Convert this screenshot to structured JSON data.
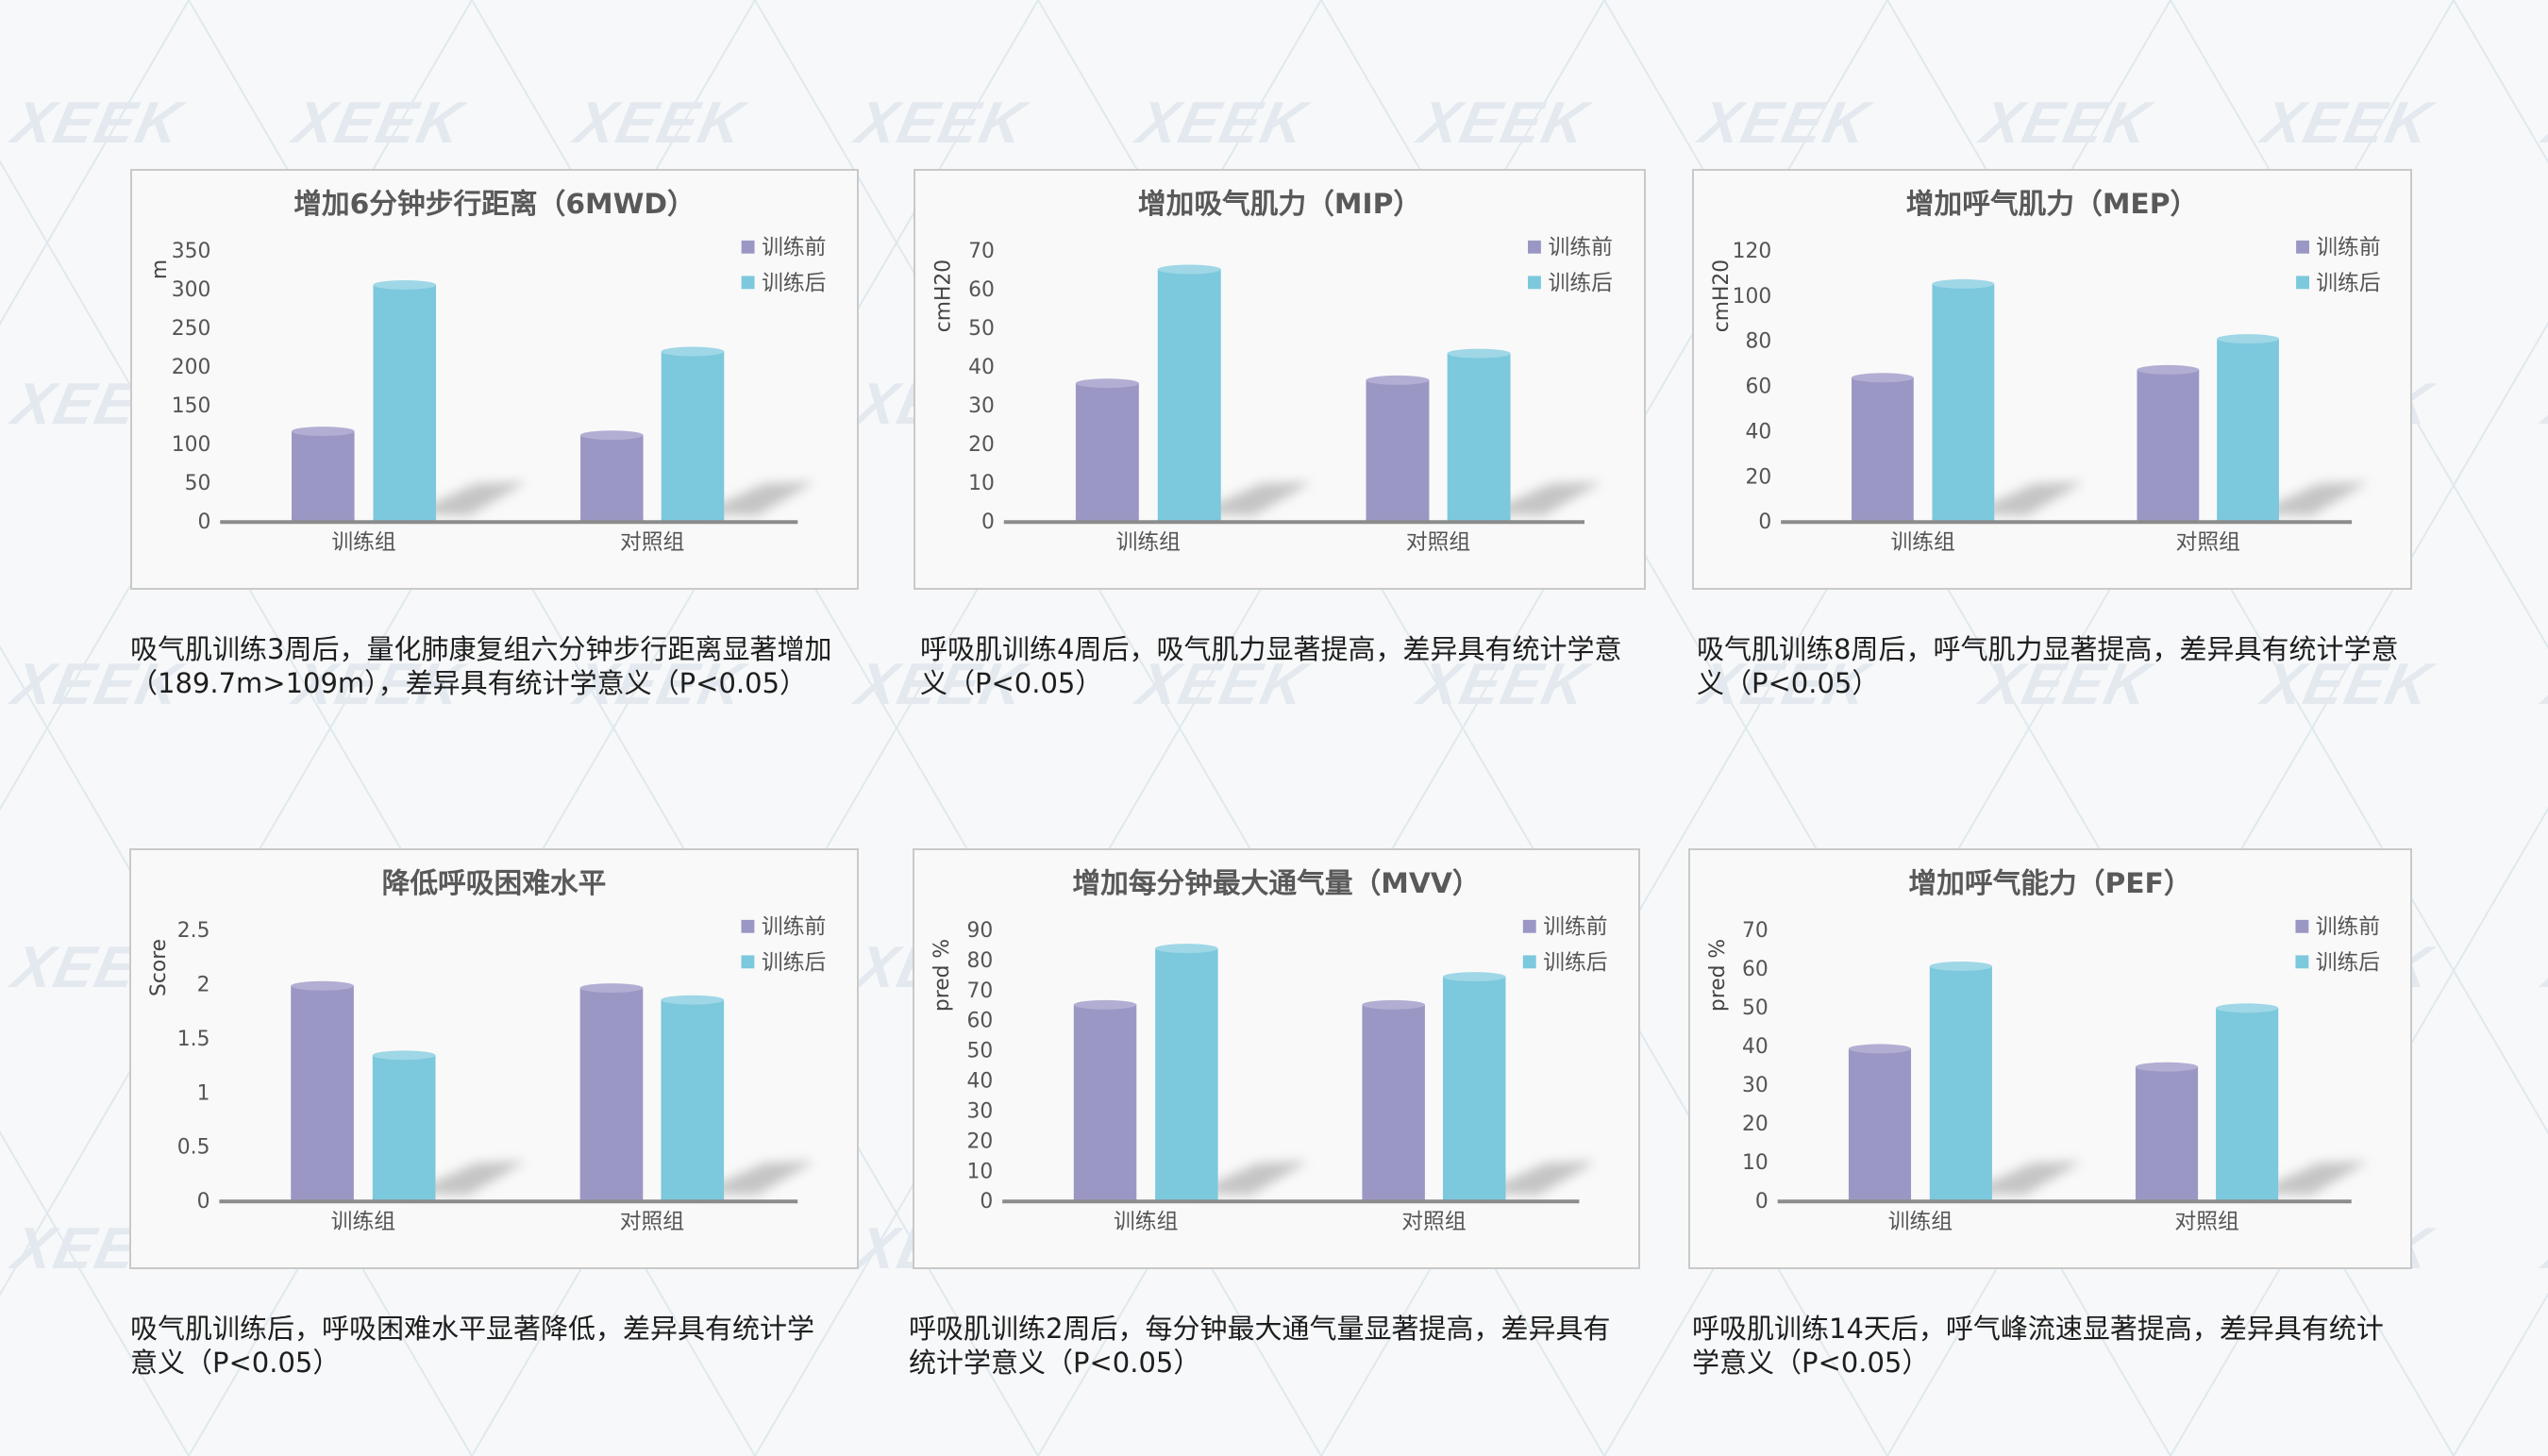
{
  "watermark": "XEEK",
  "colors": {
    "pre": "#9b97c4",
    "post": "#7cc8dd",
    "axis": "#8c8c8c",
    "text": "#595959"
  },
  "chart_data": [
    {
      "type": "bar",
      "title": "增加6分钟步行距离（6MWD）",
      "ylabel": "m",
      "ylim": [
        0,
        350
      ],
      "yticks": [
        0,
        50,
        100,
        150,
        200,
        250,
        300,
        350
      ],
      "categories": [
        "训练组",
        "对照组"
      ],
      "series": [
        {
          "name": "训练前",
          "values": [
            116,
            111
          ]
        },
        {
          "name": "训练后",
          "values": [
            305,
            219
          ]
        }
      ],
      "legend": "top-right",
      "caption": [
        "吸气肌训练3周后，量化肺康复组六分钟步行距离显著增加",
        "（189.7m>109m），差异具有统计学意义（P<0.05）"
      ]
    },
    {
      "type": "bar",
      "title": "增加吸气肌力（MIP）",
      "ylabel": "cmH20",
      "ylim": [
        0,
        70
      ],
      "yticks": [
        0,
        10,
        20,
        30,
        40,
        50,
        60,
        70
      ],
      "categories": [
        "训练组",
        "对照组"
      ],
      "series": [
        {
          "name": "训练前",
          "values": [
            35.6,
            36.4
          ]
        },
        {
          "name": "训练后",
          "values": [
            65,
            43.3
          ]
        }
      ],
      "legend": "top-right",
      "caption": [
        "呼吸肌训练4周后，吸气肌力显著提高，差异具有统计学意",
        "义（P<0.05）"
      ]
    },
    {
      "type": "bar",
      "title": "增加呼气肌力（MEP）",
      "ylabel": "cmH20",
      "ylim": [
        0,
        120
      ],
      "yticks": [
        0,
        20,
        40,
        60,
        80,
        100,
        120
      ],
      "categories": [
        "训练组",
        "对照组"
      ],
      "series": [
        {
          "name": "训练前",
          "values": [
            63.5,
            67
          ]
        },
        {
          "name": "训练后",
          "values": [
            105,
            80.7
          ]
        }
      ],
      "legend": "top-right",
      "caption": [
        "吸气肌训练8周后，呼气肌力显著提高，差异具有统计学意",
        "义（P<0.05）"
      ]
    },
    {
      "type": "bar",
      "title": "降低呼吸困难水平",
      "ylabel": "Score",
      "ylim": [
        0,
        2.5
      ],
      "yticks": [
        0,
        0.5,
        1,
        1.5,
        2,
        2.5
      ],
      "categories": [
        "训练组",
        "对照组"
      ],
      "series": [
        {
          "name": "训练前",
          "values": [
            1.98,
            1.96
          ]
        },
        {
          "name": "训练后",
          "values": [
            1.34,
            1.85
          ]
        }
      ],
      "legend": "top-right",
      "caption": [
        "吸气肌训练后，呼吸困难水平显著降低，差异具有统计学",
        "意义（P<0.05）"
      ]
    },
    {
      "type": "bar",
      "title": "增加每分钟最大通气量（MVV）",
      "ylabel": "pred %",
      "ylim": [
        0,
        90
      ],
      "yticks": [
        0,
        10,
        20,
        30,
        40,
        50,
        60,
        70,
        80,
        90
      ],
      "categories": [
        "训练组",
        "对照组"
      ],
      "series": [
        {
          "name": "训练前",
          "values": [
            65,
            65
          ]
        },
        {
          "name": "训练后",
          "values": [
            83.7,
            74.3
          ]
        }
      ],
      "legend": "top-right",
      "caption": [
        "呼吸肌训练2周后，每分钟最大通气量显著提高，差异具有",
        "统计学意义（P<0.05）"
      ]
    },
    {
      "type": "bar",
      "title": "增加呼气能力（PEF）",
      "ylabel": "pred %",
      "ylim": [
        0,
        70
      ],
      "yticks": [
        0,
        10,
        20,
        30,
        40,
        50,
        60,
        70
      ],
      "categories": [
        "训练组",
        "对照组"
      ],
      "series": [
        {
          "name": "训练前",
          "values": [
            39.2,
            34.5
          ]
        },
        {
          "name": "训练后",
          "values": [
            60.5,
            49.7
          ]
        }
      ],
      "legend": "top-right",
      "caption": [
        "呼吸肌训练14天后，呼气峰流速显著提高，差异具有统计",
        "学意义（P<0.05）"
      ]
    }
  ]
}
